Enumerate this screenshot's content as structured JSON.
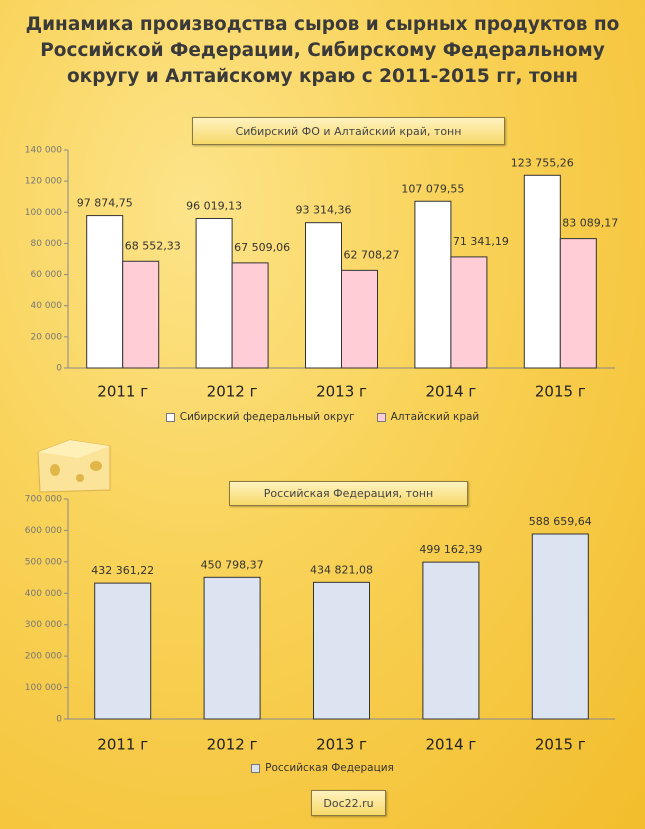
{
  "title": "Динамика производства сыров и сырных продуктов по Российской Федерации, Сибирскому Федеральному округу и Алтайскому краю с 2011-2015 гг, тонн",
  "footer": "Doc22.ru",
  "chart_data": [
    {
      "type": "bar",
      "title": "Сибирский ФО и Алтайский край, тонн",
      "categories": [
        "2011 г",
        "2012 г",
        "2013 г",
        "2014 г",
        "2015 г"
      ],
      "series": [
        {
          "name": "Сибирский федеральный округ",
          "color": "#ffffff",
          "values": [
            97874.75,
            96019.13,
            93314.36,
            107079.55,
            123755.26
          ],
          "value_labels": [
            "97 874,75",
            "96 019,13",
            "93 314,36",
            "107 079,55",
            "123 755,26"
          ]
        },
        {
          "name": "Алтайский край",
          "color": "#ffcdd6",
          "values": [
            68552.33,
            67509.06,
            62708.27,
            71341.19,
            83089.17
          ],
          "value_labels": [
            "68 552,33",
            "67 509,06",
            "62 708,27",
            "71 341,19",
            "83 089,17"
          ]
        }
      ],
      "ylim": [
        0,
        140000
      ],
      "yticks": [
        0,
        {
          "value": 20000,
          "label": "20 000"
        },
        {
          "value": 40000,
          "label": "40 000"
        },
        {
          "value": 60000,
          "label": "60 000"
        },
        {
          "value": 80000,
          "label": "80 000"
        },
        {
          "value": 100000,
          "label": "100 000"
        },
        {
          "value": 120000,
          "label": "120 000"
        },
        {
          "value": 140000,
          "label": "140 000"
        }
      ]
    },
    {
      "type": "bar",
      "title": "Российская Федерация, тонн",
      "categories": [
        "2011 г",
        "2012 г",
        "2013 г",
        "2014 г",
        "2015 г"
      ],
      "series": [
        {
          "name": "Российская Федерация",
          "color": "#dce3f1",
          "values": [
            432361.22,
            450798.37,
            434821.08,
            499162.39,
            588659.64
          ],
          "value_labels": [
            "432 361,22",
            "450 798,37",
            "434 821,08",
            "499 162,39",
            "588 659,64"
          ]
        }
      ],
      "ylim": [
        0,
        700000
      ],
      "yticks": [
        0,
        {
          "value": 100000,
          "label": "100 000"
        },
        {
          "value": 200000,
          "label": "200 000"
        },
        {
          "value": 300000,
          "label": "300 000"
        },
        {
          "value": 400000,
          "label": "400 000"
        },
        {
          "value": 500000,
          "label": "500 000"
        },
        {
          "value": 600000,
          "label": "600 000"
        },
        {
          "value": 700000,
          "label": "700 000"
        }
      ]
    }
  ]
}
